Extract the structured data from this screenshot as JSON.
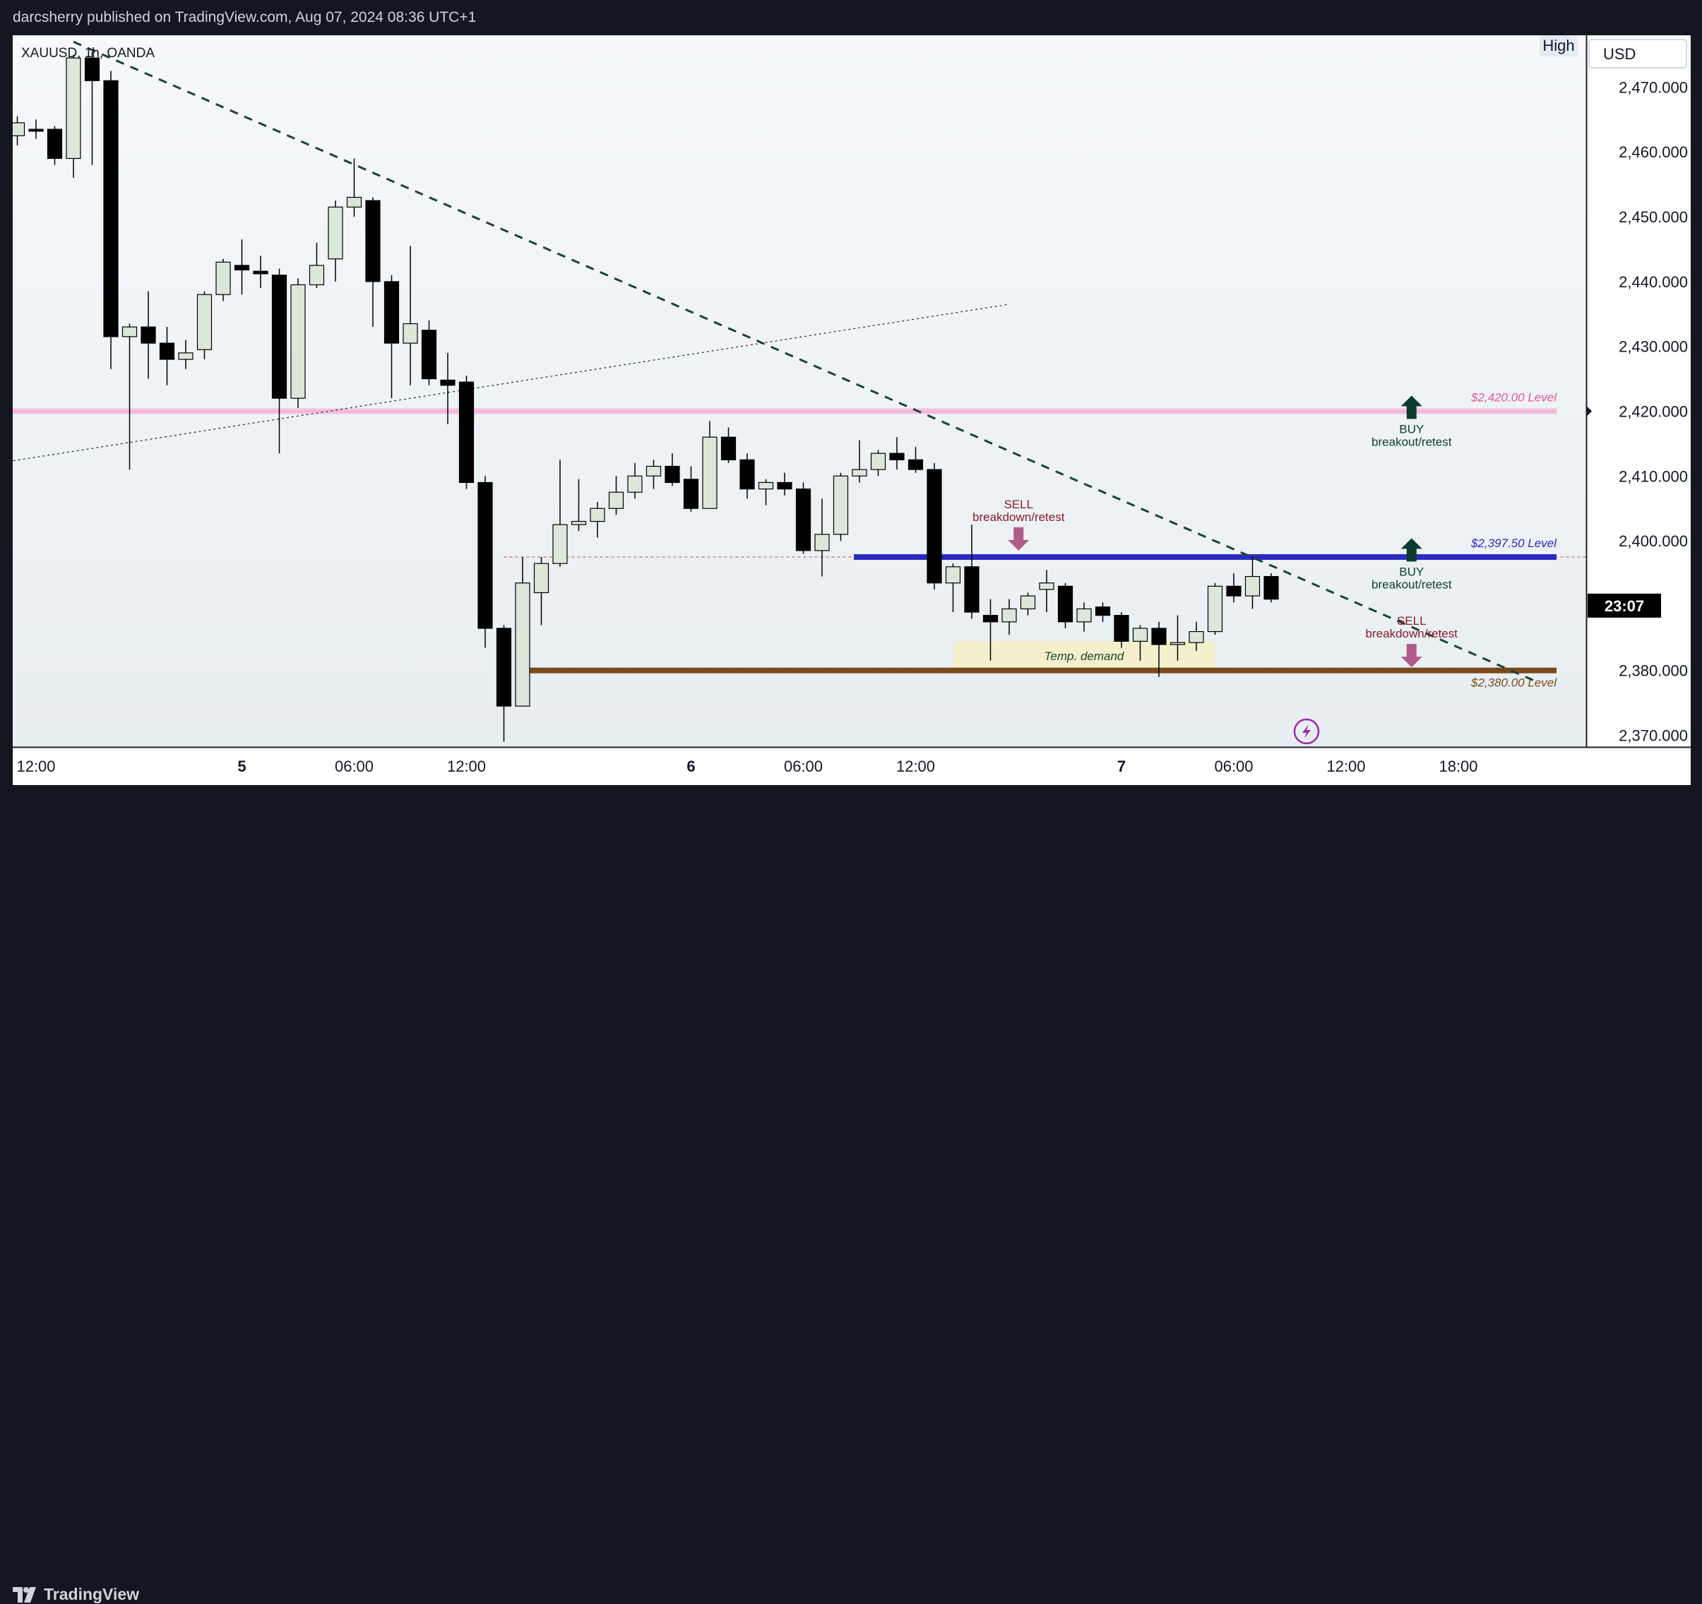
{
  "header": {
    "publish_line": "darcsherry published on TradingView.com, Aug 07, 2024 08:36 UTC+1"
  },
  "footer": {
    "brand": "TradingView"
  },
  "colors": {
    "background": "#131722",
    "plot": "#f2f6f9",
    "bull_fill": "#dbe8d9",
    "bear_fill": "#000000",
    "trend": "#1b4332",
    "pink_level": "#f0a3cc",
    "blue_level": "#2b2bc0",
    "brown_level": "#7a4a1c",
    "buy_arrow": "#0c3b2e",
    "sell_arrow": "#b05b8a",
    "demand_zone": "#f6efc8",
    "price_line": "#e06060"
  },
  "chart_data": {
    "type": "candlestick",
    "symbol": "XAUUSD, 1h, OANDA",
    "currency": "USD",
    "legend_badge": "High",
    "countdown": "23:07",
    "y_ticks": [
      2370,
      2380,
      2400,
      2410,
      2420,
      2430,
      2440,
      2450,
      2460,
      2470
    ],
    "y_tick_labels": [
      "2,370.000",
      "2,380.000",
      "2,400.000",
      "2,410.000",
      "2,420.000",
      "2,430.000",
      "2,440.000",
      "2,450.000",
      "2,460.000",
      "2,470.000"
    ],
    "ylim": [
      2368.2,
      2478.0
    ],
    "x_labels": [
      {
        "label": "12:00",
        "i": 1
      },
      {
        "label": "5",
        "i": 12
      },
      {
        "label": "06:00",
        "i": 18
      },
      {
        "label": "12:00",
        "i": 24
      },
      {
        "label": "6",
        "i": 36
      },
      {
        "label": "06:00",
        "i": 42
      },
      {
        "label": "12:00",
        "i": 48
      },
      {
        "label": "7",
        "i": 59
      },
      {
        "label": "06:00",
        "i": 65
      },
      {
        "label": "12:00",
        "i": 71
      },
      {
        "label": "18:00",
        "i": 77
      }
    ],
    "candles": [
      {
        "o": 2462.5,
        "h": 2465.5,
        "l": 2461.0,
        "c": 2464.5
      },
      {
        "o": 2463.5,
        "h": 2465.0,
        "l": 2462.0,
        "c": 2463.2
      },
      {
        "o": 2463.5,
        "h": 2464.0,
        "l": 2458.0,
        "c": 2459.0
      },
      {
        "o": 2459.0,
        "h": 2475.0,
        "l": 2456.0,
        "c": 2474.5
      },
      {
        "o": 2474.5,
        "h": 2475.5,
        "l": 2458.0,
        "c": 2471.0
      },
      {
        "o": 2471.0,
        "h": 2472.5,
        "l": 2426.5,
        "c": 2431.5
      },
      {
        "o": 2431.5,
        "h": 2433.5,
        "l": 2411.0,
        "c": 2433.0
      },
      {
        "o": 2433.0,
        "h": 2438.5,
        "l": 2425.0,
        "c": 2430.5
      },
      {
        "o": 2430.5,
        "h": 2433.0,
        "l": 2424.0,
        "c": 2428.0
      },
      {
        "o": 2428.0,
        "h": 2431.0,
        "l": 2426.5,
        "c": 2429.0
      },
      {
        "o": 2429.5,
        "h": 2438.5,
        "l": 2428.0,
        "c": 2438.0
      },
      {
        "o": 2438.0,
        "h": 2443.5,
        "l": 2437.0,
        "c": 2443.0
      },
      {
        "o": 2442.5,
        "h": 2446.5,
        "l": 2438.0,
        "c": 2441.8
      },
      {
        "o": 2441.6,
        "h": 2444.0,
        "l": 2439.0,
        "c": 2441.2
      },
      {
        "o": 2441.0,
        "h": 2442.0,
        "l": 2413.5,
        "c": 2422.0
      },
      {
        "o": 2422.0,
        "h": 2440.5,
        "l": 2420.5,
        "c": 2439.5
      },
      {
        "o": 2439.5,
        "h": 2446.0,
        "l": 2439.0,
        "c": 2442.5
      },
      {
        "o": 2443.5,
        "h": 2452.5,
        "l": 2440.0,
        "c": 2451.5
      },
      {
        "o": 2451.5,
        "h": 2459.0,
        "l": 2450.0,
        "c": 2453.0
      },
      {
        "o": 2452.5,
        "h": 2453.0,
        "l": 2433.0,
        "c": 2440.0
      },
      {
        "o": 2440.0,
        "h": 2441.0,
        "l": 2422.0,
        "c": 2430.5
      },
      {
        "o": 2430.5,
        "h": 2445.5,
        "l": 2424.0,
        "c": 2433.5
      },
      {
        "o": 2432.5,
        "h": 2434.0,
        "l": 2424.0,
        "c": 2425.0
      },
      {
        "o": 2424.8,
        "h": 2429.0,
        "l": 2418.0,
        "c": 2424.0
      },
      {
        "o": 2424.5,
        "h": 2425.5,
        "l": 2408.0,
        "c": 2409.0
      },
      {
        "o": 2409.0,
        "h": 2410.0,
        "l": 2383.5,
        "c": 2386.5
      },
      {
        "o": 2386.5,
        "h": 2387.0,
        "l": 2369.0,
        "c": 2374.5
      },
      {
        "o": 2374.5,
        "h": 2397.5,
        "l": 2374.5,
        "c": 2393.5
      },
      {
        "o": 2392.0,
        "h": 2397.5,
        "l": 2387.0,
        "c": 2396.5
      },
      {
        "o": 2396.5,
        "h": 2412.5,
        "l": 2396.0,
        "c": 2402.5
      },
      {
        "o": 2402.5,
        "h": 2409.5,
        "l": 2401.5,
        "c": 2403.0
      },
      {
        "o": 2403.0,
        "h": 2406.0,
        "l": 2400.5,
        "c": 2405.0
      },
      {
        "o": 2405.0,
        "h": 2410.0,
        "l": 2404.0,
        "c": 2407.5
      },
      {
        "o": 2407.5,
        "h": 2412.0,
        "l": 2406.5,
        "c": 2410.0
      },
      {
        "o": 2410.0,
        "h": 2412.5,
        "l": 2408.0,
        "c": 2411.5
      },
      {
        "o": 2411.5,
        "h": 2413.5,
        "l": 2408.5,
        "c": 2409.0
      },
      {
        "o": 2409.5,
        "h": 2411.5,
        "l": 2404.5,
        "c": 2405.0
      },
      {
        "o": 2405.0,
        "h": 2418.5,
        "l": 2405.0,
        "c": 2416.0
      },
      {
        "o": 2416.0,
        "h": 2417.5,
        "l": 2412.0,
        "c": 2412.5
      },
      {
        "o": 2412.5,
        "h": 2413.5,
        "l": 2406.5,
        "c": 2408.0
      },
      {
        "o": 2408.0,
        "h": 2409.5,
        "l": 2405.5,
        "c": 2409.0
      },
      {
        "o": 2409.0,
        "h": 2410.5,
        "l": 2407.0,
        "c": 2408.0
      },
      {
        "o": 2408.0,
        "h": 2409.0,
        "l": 2398.0,
        "c": 2398.5
      },
      {
        "o": 2398.5,
        "h": 2406.5,
        "l": 2394.5,
        "c": 2401.0
      },
      {
        "o": 2401.0,
        "h": 2410.5,
        "l": 2400.0,
        "c": 2410.0
      },
      {
        "o": 2410.0,
        "h": 2415.5,
        "l": 2409.0,
        "c": 2411.0
      },
      {
        "o": 2411.0,
        "h": 2414.0,
        "l": 2410.0,
        "c": 2413.5
      },
      {
        "o": 2413.5,
        "h": 2416.0,
        "l": 2411.0,
        "c": 2412.5
      },
      {
        "o": 2412.5,
        "h": 2414.5,
        "l": 2410.5,
        "c": 2411.0
      },
      {
        "o": 2411.0,
        "h": 2412.0,
        "l": 2392.5,
        "c": 2393.5
      },
      {
        "o": 2393.5,
        "h": 2396.5,
        "l": 2389.0,
        "c": 2396.0
      },
      {
        "o": 2396.0,
        "h": 2402.5,
        "l": 2388.0,
        "c": 2389.0
      },
      {
        "o": 2388.5,
        "h": 2391.0,
        "l": 2381.5,
        "c": 2387.5
      },
      {
        "o": 2387.5,
        "h": 2391.0,
        "l": 2385.5,
        "c": 2389.5
      },
      {
        "o": 2389.5,
        "h": 2392.0,
        "l": 2388.5,
        "c": 2391.5
      },
      {
        "o": 2392.5,
        "h": 2395.5,
        "l": 2389.0,
        "c": 2393.5
      },
      {
        "o": 2393.0,
        "h": 2393.5,
        "l": 2386.5,
        "c": 2387.5
      },
      {
        "o": 2387.5,
        "h": 2390.5,
        "l": 2386.0,
        "c": 2389.5
      },
      {
        "o": 2389.8,
        "h": 2390.5,
        "l": 2387.5,
        "c": 2388.5
      },
      {
        "o": 2388.5,
        "h": 2389.0,
        "l": 2383.5,
        "c": 2384.5
      },
      {
        "o": 2384.5,
        "h": 2387.0,
        "l": 2381.5,
        "c": 2386.5
      },
      {
        "o": 2386.5,
        "h": 2387.5,
        "l": 2379.0,
        "c": 2384.0
      },
      {
        "o": 2384.0,
        "h": 2388.5,
        "l": 2381.5,
        "c": 2384.3
      },
      {
        "o": 2384.3,
        "h": 2387.5,
        "l": 2383.0,
        "c": 2386.0
      },
      {
        "o": 2386.0,
        "h": 2393.5,
        "l": 2385.5,
        "c": 2393.0
      },
      {
        "o": 2393.0,
        "h": 2395.0,
        "l": 2390.5,
        "c": 2391.5
      },
      {
        "o": 2391.5,
        "h": 2397.5,
        "l": 2389.5,
        "c": 2394.5
      },
      {
        "o": 2394.5,
        "h": 2395.0,
        "l": 2390.5,
        "c": 2391.0
      }
    ],
    "levels": [
      {
        "label": "$2,420.00 Level",
        "value": 2420.0,
        "color": "#e8559e"
      },
      {
        "label": "$2,397.50 Level",
        "value": 2397.5,
        "color": "#2b2bc0"
      },
      {
        "label": "$2,380.00 Level",
        "value": 2380.0,
        "color": "#7a4a1c"
      }
    ],
    "current_price_line": 2397.5,
    "trendlines": [
      {
        "style": "dashed",
        "from": [
          3,
          2477.0
        ],
        "to": [
          81,
          2378.5
        ]
      },
      {
        "style": "dotted",
        "from": [
          -1,
          2412.0
        ],
        "to": [
          53,
          2436.5
        ]
      }
    ],
    "zone": {
      "label": "Temp. demand",
      "from_i": 50,
      "to_i": 64,
      "low": 2380.0,
      "high": 2384.5
    },
    "annotations": [
      {
        "kind": "buy",
        "line1": "BUY",
        "line2": "breakout/retest",
        "i": 74.5,
        "value": 2417.5
      },
      {
        "kind": "sell",
        "line1": "SELL",
        "line2": "breakdown/retest",
        "i": 53.5,
        "value": 2398.5
      },
      {
        "kind": "buy",
        "line1": "BUY",
        "line2": "breakout/retest",
        "i": 74.5,
        "value": 2395.5
      },
      {
        "kind": "sell",
        "line1": "SELL",
        "line2": "breakdown/retest",
        "i": 74.5,
        "value": 2380.5
      }
    ]
  }
}
